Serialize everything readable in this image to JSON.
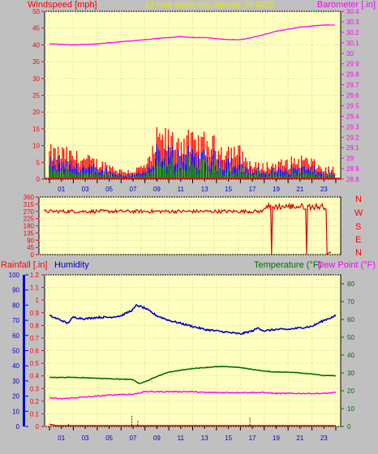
{
  "header": {
    "left_label": "Windspeed [mph]",
    "title": "24 hour graph day   January 24 2025",
    "right_label": "Barometer [.in]"
  },
  "mid": {
    "compass": [
      "N",
      "W",
      "S",
      "E",
      "N"
    ]
  },
  "bottom": {
    "rain_label": "Rainfall [.in]",
    "humidity_label": "Humidity",
    "temp_label": "Temperature (°F)",
    "dew_label": "Dew Point (°F)"
  },
  "colors": {
    "plot_bg": "#ffffc0",
    "wind": "#ff0000",
    "wind_avg": "#0000ff",
    "wind_low": "#008000",
    "barometer": "#ff00ff",
    "direction": "#dd0000",
    "humidity": "#0000cc",
    "temperature": "#007000",
    "dewpoint": "#ff00ff",
    "rain": "#ff0000"
  },
  "chart_data": [
    {
      "type": "bar",
      "xlabel": "",
      "ylabel": "Windspeed [mph]",
      "y2label": "Barometer [.in]",
      "x_ticks": [
        "01",
        "03",
        "05",
        "07",
        "09",
        "11",
        "13",
        "15",
        "17",
        "19",
        "21",
        "23"
      ],
      "ylim": [
        0,
        50
      ],
      "y_ticks": [
        0,
        5,
        10,
        15,
        20,
        25,
        30,
        35,
        40,
        45,
        50
      ],
      "y2lim": [
        28.8,
        30.4
      ],
      "y2_ticks": [
        "28.8",
        "28.9",
        "29",
        "29.1",
        "29.2",
        "29.3",
        "29.4",
        "29.5",
        "29.6",
        "29.7",
        "29.8",
        "29.9",
        "30",
        "30.1",
        "30.2",
        "30.3",
        "30.4"
      ],
      "gust_profile": {
        "hours": [
          0,
          1,
          3,
          5,
          6,
          7,
          8,
          8.5,
          9,
          10,
          11,
          12,
          13,
          14,
          15,
          16,
          16.5,
          17,
          18,
          19,
          20,
          21,
          22,
          23,
          24
        ],
        "values": [
          8,
          8,
          6,
          4,
          2.5,
          2.5,
          4,
          6,
          12,
          12,
          12,
          11,
          11,
          10,
          9,
          8,
          6,
          4,
          4,
          4.5,
          5,
          6,
          5,
          3,
          3
        ]
      },
      "barometer": {
        "hours": [
          0,
          2,
          4,
          6,
          8,
          10,
          11,
          12,
          13,
          14,
          15,
          16,
          17,
          18,
          19,
          20,
          21,
          22,
          23,
          24
        ],
        "values": [
          30.09,
          30.08,
          30.09,
          30.11,
          30.13,
          30.15,
          30.16,
          30.15,
          30.15,
          30.14,
          30.13,
          30.13,
          30.15,
          30.18,
          30.21,
          30.23,
          30.25,
          30.26,
          30.27,
          30.27
        ]
      }
    },
    {
      "type": "line",
      "ylabel": "",
      "y2label": "",
      "ylim": [
        0,
        360
      ],
      "y_ticks": [
        0,
        45,
        90,
        135,
        180,
        225,
        270,
        315,
        360
      ],
      "series": [
        {
          "values_approx": 270,
          "drops_to_zero_hours": [
            18.7,
            21.6,
            23.3
          ]
        }
      ]
    },
    {
      "type": "line",
      "ylim_rain": [
        0,
        1.2
      ],
      "rain_ticks": [
        "0",
        "0.1",
        "0.2",
        "0.3",
        "0.4",
        "0.5",
        "0.6",
        "0.7",
        "0.8",
        "0.9",
        "1",
        "1.1",
        "1.2"
      ],
      "humidity_ylim": [
        0,
        100
      ],
      "humidity_ticks": [
        0,
        10,
        20,
        30,
        40,
        50,
        60,
        70,
        80,
        90,
        100
      ],
      "temp_ylim": [
        0,
        85
      ],
      "temp_ticks": [
        0,
        10,
        20,
        30,
        40,
        50,
        60,
        70,
        80
      ],
      "x_ticks": [
        "01",
        "03",
        "05",
        "07",
        "09",
        "11",
        "13",
        "15",
        "17",
        "19",
        "21",
        "23"
      ],
      "series": [
        {
          "name": "Humidity",
          "hours": [
            0,
            1,
            1.5,
            2,
            3,
            4,
            5,
            6,
            7,
            7.3,
            8,
            9,
            10,
            11,
            12,
            13,
            14,
            15,
            16,
            17,
            17.5,
            18,
            19,
            20,
            21,
            22,
            23,
            24
          ],
          "values": [
            73,
            70,
            68,
            72,
            71,
            72,
            72,
            73,
            77,
            80,
            78,
            73,
            70,
            68,
            66,
            64,
            63,
            62,
            61,
            63,
            65,
            63,
            64,
            64,
            65,
            66,
            70,
            73
          ]
        },
        {
          "name": "Temperature (°F)",
          "hours": [
            0,
            1,
            2,
            3,
            4,
            5,
            6,
            7,
            7.5,
            8,
            9,
            10,
            11,
            12,
            13,
            14,
            15,
            16,
            17,
            18,
            19,
            20,
            21,
            22,
            23,
            24
          ],
          "values": [
            27.5,
            27.5,
            27.5,
            27.3,
            27,
            26.8,
            26.5,
            26.3,
            24,
            25,
            28,
            30.5,
            31.5,
            32.5,
            33,
            33.5,
            33.5,
            33,
            32,
            31,
            30.5,
            30.5,
            30,
            29.5,
            28.5,
            28.5
          ]
        },
        {
          "name": "Dew Point (°F)",
          "hours": [
            0,
            1,
            2,
            3,
            4,
            5,
            6,
            7,
            8,
            9,
            10,
            11,
            12,
            13,
            14,
            15,
            16,
            17,
            18,
            19,
            20,
            21,
            22,
            23,
            24
          ],
          "values": [
            16,
            15.5,
            16,
            16.5,
            17,
            17.5,
            18,
            18,
            19.5,
            19.5,
            19.5,
            19.5,
            19.5,
            19,
            19,
            19,
            19,
            19,
            19,
            18.5,
            18.5,
            18.5,
            18.5,
            18.5,
            19
          ]
        },
        {
          "name": "Rainfall [.in]",
          "hours": [
            0,
            0.3,
            0.6,
            24
          ],
          "values": [
            0.01,
            0.005,
            0,
            0
          ]
        }
      ]
    }
  ]
}
